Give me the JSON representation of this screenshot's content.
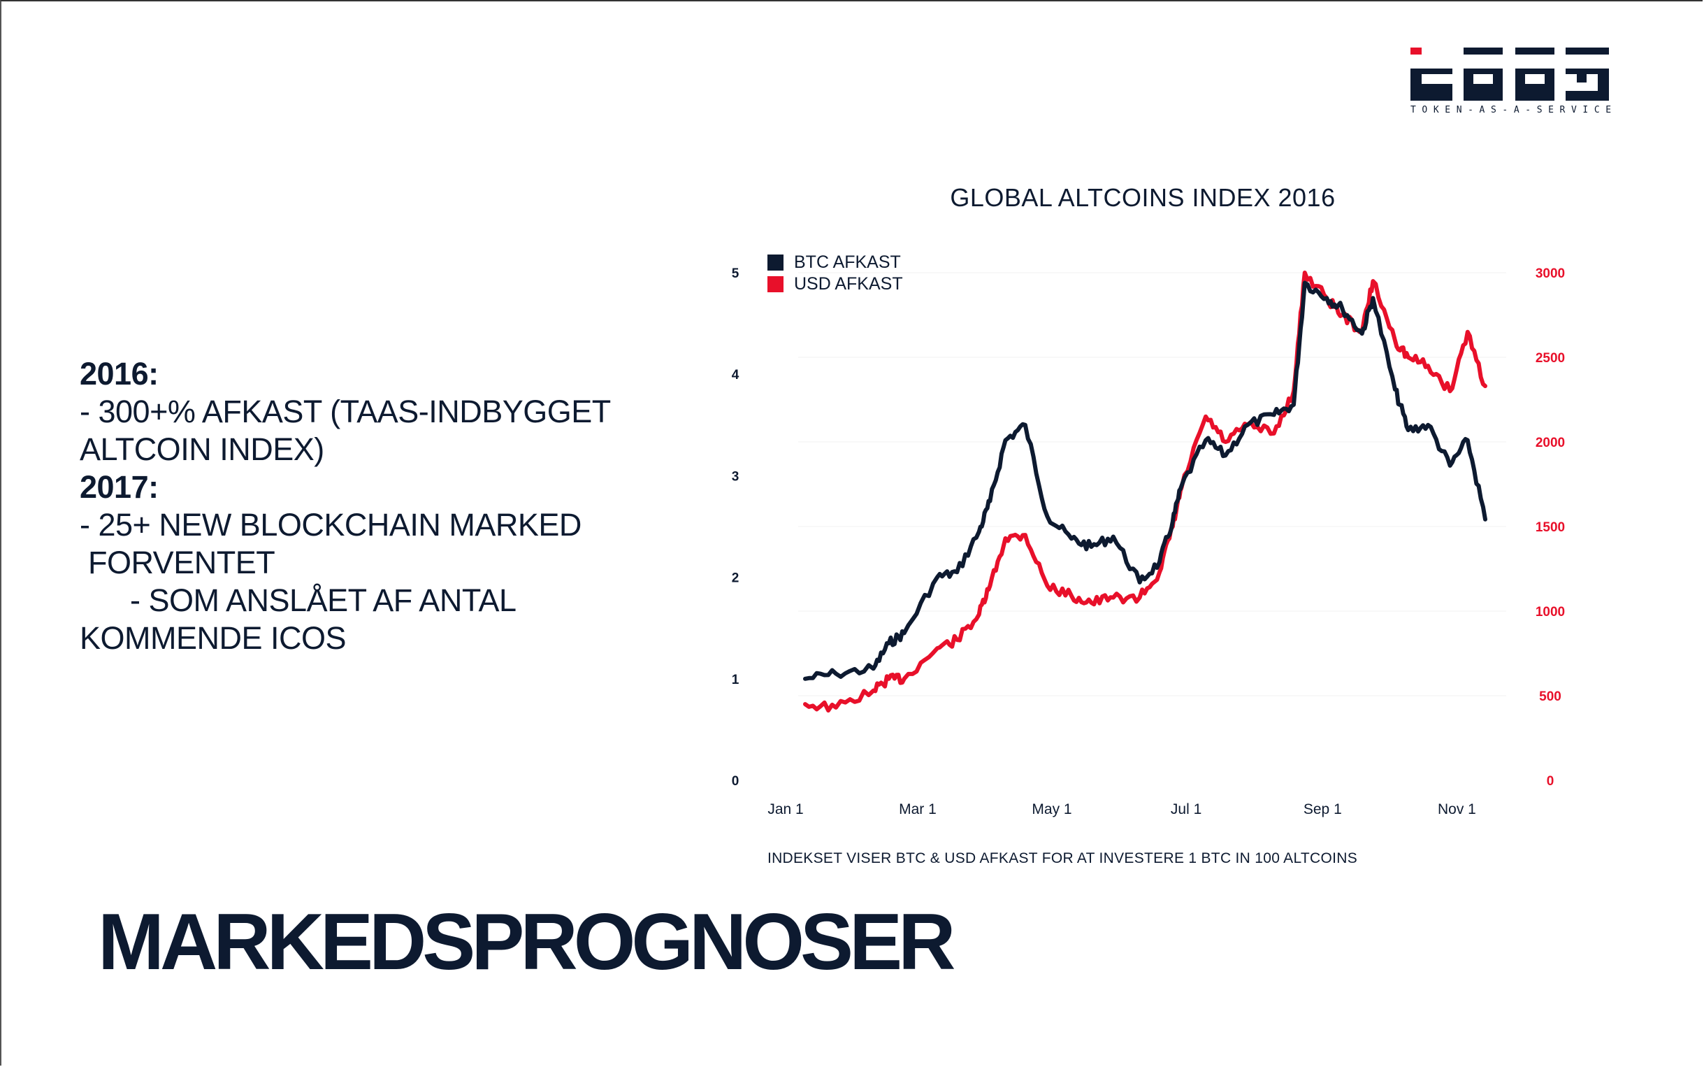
{
  "logo": {
    "mark": "taas",
    "tagline": "TOKEN-AS-A-SERVICE"
  },
  "left_text": {
    "year_2016": "2016:",
    "line_2016_a": "- 300+% AFKAST (TAAS-INDBYGGET",
    "line_2016_b": "ALTCOIN INDEX)",
    "year_2017": "2017:",
    "line_2017_a": "- 25+ NEW BLOCKCHAIN MARKED",
    "line_2017_b": " FORVENTET",
    "line_2017_c": "- SOM ANSLÅET AF ANTAL",
    "line_2017_d": "KOMMENDE ICOS"
  },
  "heading": "MARKEDSPROGNOSER",
  "colors": {
    "navy": "#0d1a30",
    "red": "#e8102a"
  },
  "chart_data": {
    "type": "line",
    "title": "GLOBAL ALTCOINS INDEX 2016",
    "footnote": "INDEKSET VISER BTC & USD AFKAST FOR AT INVESTERE 1 BTC IN 100 ALTCOINS",
    "xlabel": "",
    "x_ticks": [
      "Jan 1",
      "Mar 1",
      "May 1",
      "Jul 1",
      "Sep 1",
      "Nov 1"
    ],
    "y_left": {
      "label": "",
      "range": [
        0,
        5
      ],
      "ticks": [
        "0",
        "1",
        "2",
        "3",
        "4",
        "5"
      ]
    },
    "y_right": {
      "label": "",
      "range": [
        0,
        3000
      ],
      "ticks": [
        "0",
        "500",
        "1000",
        "1500",
        "2000",
        "2500",
        "3000"
      ]
    },
    "grid": "faint horizontal",
    "legend_position": "top-left",
    "x": [
      "2016-01-01",
      "2016-01-15",
      "2016-02-01",
      "2016-02-08",
      "2016-02-15",
      "2016-03-01",
      "2016-03-10",
      "2016-03-20",
      "2016-03-25",
      "2016-04-01",
      "2016-04-10",
      "2016-04-20",
      "2016-05-01",
      "2016-05-10",
      "2016-05-20",
      "2016-06-01",
      "2016-06-10",
      "2016-06-16",
      "2016-06-20",
      "2016-07-01",
      "2016-07-10",
      "2016-07-20",
      "2016-08-01",
      "2016-08-10",
      "2016-08-15",
      "2016-08-25",
      "2016-09-01",
      "2016-09-10",
      "2016-09-15",
      "2016-09-25",
      "2016-10-01",
      "2016-10-10",
      "2016-10-20",
      "2016-10-28",
      "2016-11-05"
    ],
    "series": [
      {
        "name": "BTC AFKAST",
        "axis": "left",
        "color": "#0d1a30",
        "values": [
          1.0,
          1.05,
          1.1,
          1.35,
          1.45,
          2.0,
          2.05,
          2.45,
          2.75,
          3.35,
          3.5,
          2.6,
          2.38,
          2.3,
          2.4,
          1.95,
          2.15,
          2.55,
          2.9,
          3.35,
          3.2,
          3.5,
          3.6,
          3.7,
          4.9,
          4.75,
          4.65,
          4.4,
          4.75,
          3.85,
          3.45,
          3.5,
          3.1,
          3.35,
          2.57
        ]
      },
      {
        "name": "USD AFKAST",
        "axis": "right",
        "color": "#e8102a",
        "values": [
          450,
          430,
          530,
          600,
          600,
          780,
          830,
          980,
          1150,
          1430,
          1450,
          1150,
          1090,
          1050,
          1080,
          1080,
          1230,
          1500,
          1730,
          2150,
          2000,
          2100,
          2050,
          2300,
          3000,
          2850,
          2750,
          2650,
          2950,
          2600,
          2500,
          2450,
          2300,
          2650,
          2330
        ]
      }
    ]
  }
}
